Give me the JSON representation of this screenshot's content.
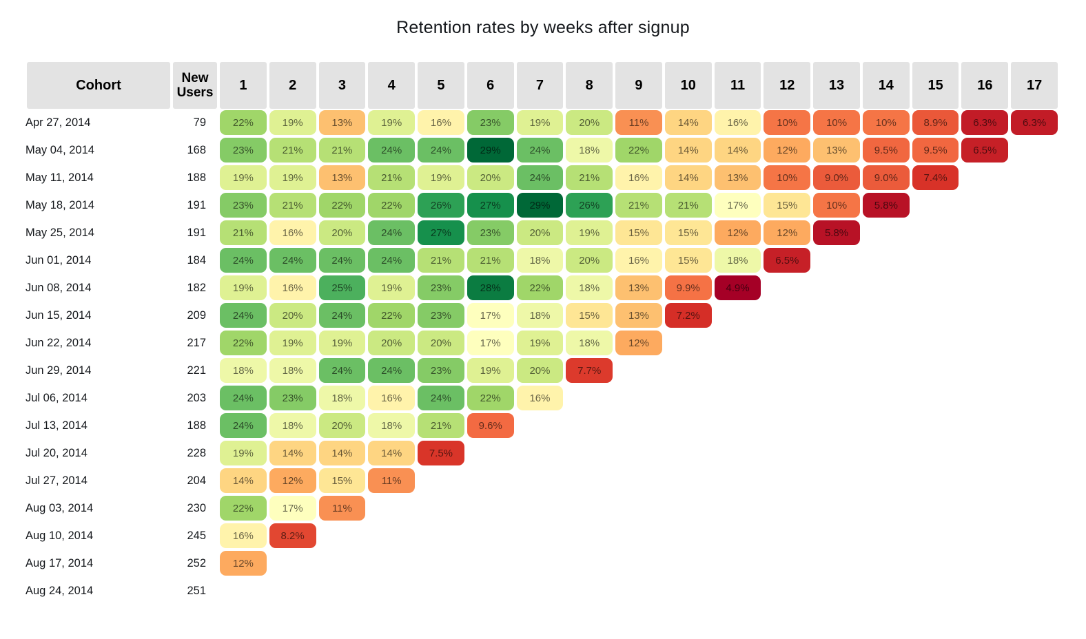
{
  "title": "Retention rates by weeks after signup",
  "table": {
    "cohort_header": "Cohort",
    "new_users_header": "New Users"
  },
  "colors": {
    "background": "#ffffff",
    "header_bg": "#e3e3e3",
    "header_text": "#000000",
    "cell_text": "rgba(0,0,0,0.6)"
  },
  "chart_data": {
    "type": "heatmap",
    "title": "Retention rates by weeks after signup",
    "columns": [
      "1",
      "2",
      "3",
      "4",
      "5",
      "6",
      "7",
      "8",
      "9",
      "10",
      "11",
      "12",
      "13",
      "14",
      "15",
      "16",
      "17"
    ],
    "row_header_label": "Cohort",
    "row_secondary_label": "New Users",
    "value_unit": "%",
    "value_format": "one decimal below 10, integer otherwise",
    "color_scale": {
      "name": "RdYlGn",
      "domain": [
        4.9,
        29
      ],
      "anchors": [
        "#a50026",
        "#d73027",
        "#f46d43",
        "#fdae61",
        "#fee08b",
        "#ffffbf",
        "#d9ef8b",
        "#a6d96a",
        "#66bd63",
        "#1a9850",
        "#006837"
      ]
    },
    "rows": [
      {
        "cohort": "Apr 27, 2014",
        "new_users": 79,
        "values": [
          22,
          19,
          13,
          19,
          16,
          23,
          19,
          20,
          11,
          14,
          16,
          10,
          10,
          10,
          8.9,
          6.3,
          6.3
        ]
      },
      {
        "cohort": "May 04, 2014",
        "new_users": 168,
        "values": [
          23,
          21,
          21,
          24,
          24,
          29,
          24,
          18,
          22,
          14,
          14,
          12,
          13,
          9.5,
          9.5,
          6.5
        ]
      },
      {
        "cohort": "May 11, 2014",
        "new_users": 188,
        "values": [
          19,
          19,
          13,
          21,
          19,
          20,
          24,
          21,
          16,
          14,
          13,
          10,
          9.0,
          9.0,
          7.4
        ]
      },
      {
        "cohort": "May 18, 2014",
        "new_users": 191,
        "values": [
          23,
          21,
          22,
          22,
          26,
          27,
          29,
          26,
          21,
          21,
          17,
          15,
          10,
          5.8
        ]
      },
      {
        "cohort": "May 25, 2014",
        "new_users": 191,
        "values": [
          21,
          16,
          20,
          24,
          27,
          23,
          20,
          19,
          15,
          15,
          12,
          12,
          5.8
        ]
      },
      {
        "cohort": "Jun 01, 2014",
        "new_users": 184,
        "values": [
          24,
          24,
          24,
          24,
          21,
          21,
          18,
          20,
          16,
          15,
          18,
          6.5
        ]
      },
      {
        "cohort": "Jun 08, 2014",
        "new_users": 182,
        "values": [
          19,
          16,
          25,
          19,
          23,
          28,
          22,
          18,
          13,
          9.9,
          4.9
        ]
      },
      {
        "cohort": "Jun 15, 2014",
        "new_users": 209,
        "values": [
          24,
          20,
          24,
          22,
          23,
          17,
          18,
          15,
          13,
          7.2
        ]
      },
      {
        "cohort": "Jun 22, 2014",
        "new_users": 217,
        "values": [
          22,
          19,
          19,
          20,
          20,
          17,
          19,
          18,
          12
        ]
      },
      {
        "cohort": "Jun 29, 2014",
        "new_users": 221,
        "values": [
          18,
          18,
          24,
          24,
          23,
          19,
          20,
          7.7
        ]
      },
      {
        "cohort": "Jul 06, 2014",
        "new_users": 203,
        "values": [
          24,
          23,
          18,
          16,
          24,
          22,
          16
        ]
      },
      {
        "cohort": "Jul 13, 2014",
        "new_users": 188,
        "values": [
          24,
          18,
          20,
          18,
          21,
          9.6
        ]
      },
      {
        "cohort": "Jul 20, 2014",
        "new_users": 228,
        "values": [
          19,
          14,
          14,
          14,
          7.5
        ]
      },
      {
        "cohort": "Jul 27, 2014",
        "new_users": 204,
        "values": [
          14,
          12,
          15,
          11
        ]
      },
      {
        "cohort": "Aug 03, 2014",
        "new_users": 230,
        "values": [
          22,
          17,
          11
        ]
      },
      {
        "cohort": "Aug 10, 2014",
        "new_users": 245,
        "values": [
          16,
          8.2
        ]
      },
      {
        "cohort": "Aug 17, 2014",
        "new_users": 252,
        "values": [
          12
        ]
      },
      {
        "cohort": "Aug 24, 2014",
        "new_users": 251,
        "values": []
      }
    ]
  }
}
